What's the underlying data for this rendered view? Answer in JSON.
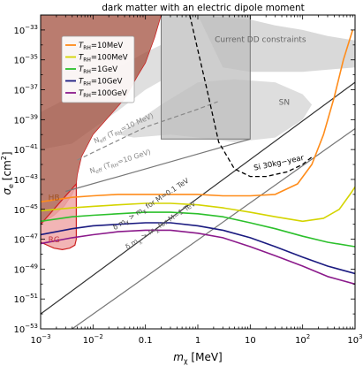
{
  "chart_data": {
    "type": "line",
    "title": "dark matter with an electric dipole moment",
    "xlabel_main": "m",
    "xlabel_sub": "χ",
    "xlabel_unit": " [MeV]",
    "ylabel_main": "σ",
    "ylabel_sub": "e",
    "ylabel_unit": " [cm",
    "ylabel_exp": "2",
    "ylabel_close": "]",
    "x_scale": "log",
    "y_scale": "log",
    "xlim": [
      0.001,
      1000
    ],
    "ylim": [
      1e-53,
      1e-32
    ],
    "x_ticks": [
      {
        "v": 0.001,
        "b": "10",
        "e": "−3"
      },
      {
        "v": 0.01,
        "b": "10",
        "e": "−2"
      },
      {
        "v": 0.1,
        "b": "0.1",
        "e": ""
      },
      {
        "v": 1,
        "b": "1",
        "e": ""
      },
      {
        "v": 10,
        "b": "10",
        "e": ""
      },
      {
        "v": 100,
        "b": "10",
        "e": "2"
      },
      {
        "v": 1000,
        "b": "10",
        "e": "3"
      }
    ],
    "y_ticks": [
      {
        "v": -33,
        "b": "10",
        "e": "−33"
      },
      {
        "v": -35,
        "b": "10",
        "e": "−35"
      },
      {
        "v": -37,
        "b": "10",
        "e": "−37"
      },
      {
        "v": -39,
        "b": "10",
        "e": "−39"
      },
      {
        "v": -41,
        "b": "10",
        "e": "−41"
      },
      {
        "v": -43,
        "b": "10",
        "e": "−43"
      },
      {
        "v": -45,
        "b": "10",
        "e": "−45"
      },
      {
        "v": -47,
        "b": "10",
        "e": "−47"
      },
      {
        "v": -49,
        "b": "10",
        "e": "−49"
      },
      {
        "v": -51,
        "b": "10",
        "e": "−51"
      },
      {
        "v": -53,
        "b": "10",
        "e": "−53"
      }
    ],
    "legend_position": "top-left",
    "series": [
      {
        "name": "T_RH=10MeV",
        "label_sub": "RH",
        "label_val": "=10MeV",
        "color": "#ff8c1a",
        "x": [
          0.001,
          0.004,
          0.01,
          0.03,
          0.1,
          0.3,
          1,
          3,
          10,
          30,
          80,
          150,
          250,
          400,
          600,
          900
        ],
        "y": [
          -44.5,
          -44.2,
          -44.1,
          -44.0,
          -44.0,
          -44.0,
          -44.0,
          -44.1,
          -44.1,
          -44.0,
          -43.3,
          -42.0,
          -40.0,
          -37.5,
          -35.0,
          -33.0
        ]
      },
      {
        "name": "T_RH=100MeV",
        "label_sub": "RH",
        "label_val": "=100MeV",
        "color": "#d4d400",
        "x": [
          0.001,
          0.004,
          0.01,
          0.03,
          0.1,
          0.3,
          1,
          3,
          10,
          30,
          100,
          250,
          500,
          800,
          1000
        ],
        "y": [
          -45.1,
          -44.9,
          -44.8,
          -44.7,
          -44.6,
          -44.6,
          -44.7,
          -44.9,
          -45.2,
          -45.5,
          -45.8,
          -45.6,
          -45.0,
          -44.0,
          -43.5
        ]
      },
      {
        "name": "T_RH=1GeV",
        "label_sub": "RH",
        "label_val": "=1GeV",
        "color": "#2cc02c",
        "x": [
          0.001,
          0.004,
          0.01,
          0.03,
          0.1,
          0.3,
          1,
          3,
          10,
          30,
          100,
          300,
          1000
        ],
        "y": [
          -45.8,
          -45.5,
          -45.4,
          -45.3,
          -45.2,
          -45.2,
          -45.3,
          -45.5,
          -45.9,
          -46.3,
          -46.8,
          -47.2,
          -47.5
        ]
      },
      {
        "name": "T_RH=10GeV",
        "label_sub": "RH",
        "label_val": "=10GeV",
        "color": "#1a1a80",
        "x": [
          0.001,
          0.004,
          0.01,
          0.03,
          0.1,
          0.3,
          1,
          3,
          10,
          30,
          100,
          300,
          1000
        ],
        "y": [
          -46.7,
          -46.3,
          -46.1,
          -46.0,
          -45.9,
          -45.9,
          -46.1,
          -46.4,
          -46.9,
          -47.5,
          -48.2,
          -48.8,
          -49.3
        ]
      },
      {
        "name": "T_RH=100GeV",
        "label_sub": "RH",
        "label_val": "=100GeV",
        "color": "#8b1a8b",
        "x": [
          0.001,
          0.004,
          0.01,
          0.03,
          0.1,
          0.3,
          1,
          3,
          10,
          30,
          100,
          300,
          1000
        ],
        "y": [
          -47.3,
          -46.9,
          -46.7,
          -46.5,
          -46.4,
          -46.4,
          -46.6,
          -46.9,
          -47.5,
          -48.1,
          -48.8,
          -49.5,
          -50.0
        ]
      }
    ],
    "other_lines": [
      {
        "id": "dm-line-1",
        "color": "#333333",
        "x": [
          0.001,
          1000
        ],
        "y": [
          -52.0,
          -36.5
        ]
      },
      {
        "id": "dm-line-2",
        "color": "#777777",
        "x": [
          0.004,
          1000
        ],
        "y": [
          -53.0,
          -39.6
        ]
      },
      {
        "id": "neff-1",
        "color": "#777777",
        "x": [
          0.003,
          0.1,
          1,
          10
        ],
        "y": [
          -43.8,
          -42.3,
          -41.3,
          -40.3
        ]
      },
      {
        "id": "neff-2",
        "color": "#888888",
        "dashed": true,
        "x": [
          0.005,
          0.1,
          1,
          2.4
        ],
        "y": [
          -41.7,
          -39.5,
          -38.3,
          -37.8
        ]
      },
      {
        "id": "si-30kg-year",
        "color": "#000000",
        "dashed": true,
        "x": [
          0.7,
          1.5,
          2.5,
          5,
          10,
          20,
          50,
          100,
          150
        ],
        "y": [
          -32.0,
          -37.0,
          -40.5,
          -42.3,
          -42.8,
          -42.8,
          -42.5,
          -42.0,
          -41.5
        ]
      }
    ],
    "regions": [
      {
        "id": "current-dd",
        "color": "#c0c0c0",
        "opacity": 0.6,
        "x": [
          1,
          10,
          30,
          100,
          300,
          1000,
          1000,
          100,
          10,
          3
        ],
        "y": [
          -32.0,
          -32.3,
          -32.7,
          -33.0,
          -33.4,
          -33.7,
          -35.5,
          -35.8,
          -35.8,
          -35.5
        ]
      },
      {
        "id": "sn",
        "color": "#c8c8c8",
        "opacity": 0.6,
        "x": [
          0.03,
          0.2,
          1,
          5,
          30,
          100,
          150,
          100,
          30,
          5,
          1,
          0.3,
          0.06
        ],
        "y": [
          -40.0,
          -38.0,
          -36.5,
          -36.3,
          -36.5,
          -37.3,
          -38.0,
          -39.0,
          -40.2,
          -40.5,
          -40.2,
          -40.0,
          -40.2
        ]
      },
      {
        "id": "neff-region",
        "color": "#d9d9d9",
        "opacity": 0.85,
        "x": [
          0.001,
          0.004,
          0.01,
          0.03,
          0.1,
          0.2,
          0.2,
          0.1,
          0.03,
          0.01,
          0.004,
          0.001
        ],
        "y": [
          -41.0,
          -40.6,
          -39.6,
          -38.4,
          -37.0,
          -36.4,
          -34.0,
          -34.5,
          -35.5,
          -36.4,
          -37.4,
          -38.5
        ]
      },
      {
        "id": "dd-box",
        "color": "#bdbdbd",
        "opacity": 0.75,
        "x": [
          0.2,
          10,
          10,
          0.2
        ],
        "y": [
          -32.0,
          -32.0,
          -40.3,
          -40.3
        ]
      },
      {
        "id": "hb",
        "color": "#a04a38",
        "opacity": 0.72,
        "x": [
          0.001,
          0.0012,
          0.0018,
          0.0028,
          0.004,
          0.0048,
          0.005,
          0.006,
          0.01,
          0.02,
          0.04,
          0.07,
          0.1,
          0.15,
          0.2,
          0.2,
          0.001
        ],
        "y": [
          -46.0,
          -45.8,
          -45.4,
          -44.8,
          -44.0,
          -43.3,
          -42.7,
          -41.5,
          -40.0,
          -38.8,
          -37.6,
          -36.1,
          -35.2,
          -33.5,
          -32.0,
          -32.0,
          -32.0
        ]
      },
      {
        "id": "rg",
        "color": "#f0a8a8",
        "opacity": 0.85,
        "x": [
          0.001,
          0.0048,
          0.0048,
          0.0045,
          0.0036,
          0.0026,
          0.0018,
          0.001
        ],
        "y": [
          -46.0,
          -43.3,
          -47.0,
          -47.4,
          -47.6,
          -47.7,
          -47.6,
          -47.2
        ]
      }
    ],
    "region_labels": [
      {
        "text": "Current DD constraints",
        "x": 2.1,
        "y": -33.8,
        "color": "#666666",
        "size": 9,
        "rotate": 0
      },
      {
        "text": "SN",
        "x": 35,
        "y": -38.0,
        "color": "#666666",
        "size": 9,
        "rotate": 0
      },
      {
        "text": "HB",
        "x": 0.0014,
        "y": -44.4,
        "color": "#a05020",
        "size": 9,
        "rotate": 0
      },
      {
        "text": "RG",
        "x": 0.0014,
        "y": -47.2,
        "color": "#c0303a",
        "size": 9,
        "rotate": 0
      },
      {
        "text": "Si 30kg−year",
        "x": 12,
        "y": -42.4,
        "color": "#000000",
        "size": 8.5,
        "rotate": -12
      }
    ],
    "line_labels": [
      {
        "main": "N",
        "sub": "eff",
        "rest": " (T",
        "sub2": "RH",
        "rest2": "=10 MeV)",
        "x": 0.011,
        "y": -40.6,
        "rotate": -24,
        "color": "#888888"
      },
      {
        "main": "N",
        "sub": "eff",
        "rest": " (T",
        "sub2": "RH",
        "rest2": "=10 GeV)",
        "x": 0.009,
        "y": -42.6,
        "rotate": -18,
        "color": "#888888"
      },
      {
        "main": "δ m",
        "sub": "χ",
        "rest": " > m",
        "sub2": "χ",
        "rest2": " for M=0.1 TeV",
        "x": 0.026,
        "y": -46.4,
        "rotate": -33,
        "color": "#444444"
      },
      {
        "main": "δ m",
        "sub": "χ",
        "rest": " > m",
        "sub2": "χ",
        "rest2": " for M=1 TeV",
        "x": 0.045,
        "y": -47.7,
        "rotate": -33,
        "color": "#666666"
      }
    ]
  }
}
